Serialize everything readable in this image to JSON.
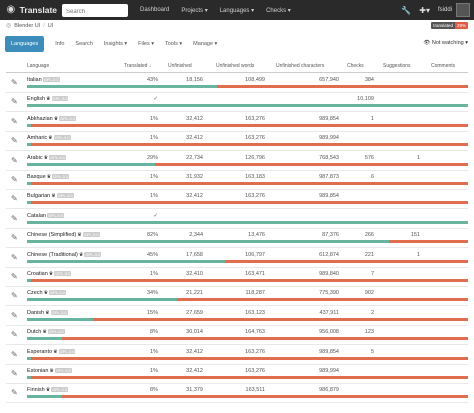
{
  "navbar": {
    "brand": "Translate",
    "search_placeholder": "Search",
    "links": [
      "Dashboard",
      "Projects ▾",
      "Languages ▾",
      "Checks ▾"
    ],
    "user": "fsiddi"
  },
  "breadcrumb": {
    "project": "Blender UI",
    "component": "UI"
  },
  "badge": {
    "label": "translated",
    "value": "29%"
  },
  "tabs": [
    "Languages",
    "Info",
    "Search",
    "Insights ▾",
    "Files ▾",
    "Tools ▾",
    "Manage ▾"
  ],
  "watch_label": "Not watching ▾",
  "columns": {
    "language": "Language",
    "translated": "Translated ↓",
    "unfinished": "Unfinished",
    "unfinished_words": "Unfinished words",
    "unfinished_chars": "Unfinished characters",
    "checks": "Checks",
    "suggestions": "Suggestions",
    "comments": "Comments"
  },
  "license_tag": "GPL-3.0",
  "rows": [
    {
      "name": "Italian",
      "crown": false,
      "lic": true,
      "translated": "43%",
      "pct": 0.43,
      "unfinished": "18,156",
      "words": "108,499",
      "chars": "657,940",
      "checks": "384",
      "suggestions": "",
      "comments": ""
    },
    {
      "name": "English",
      "crown": true,
      "lic": true,
      "translated": "✓",
      "pct": 1.0,
      "unfinished": "",
      "words": "",
      "chars": "",
      "checks": "10,109",
      "suggestions": "",
      "comments": ""
    },
    {
      "name": "Abkhazian",
      "crown": true,
      "lic": true,
      "translated": "1%",
      "pct": 0.01,
      "unfinished": "32,412",
      "words": "163,276",
      "chars": "989,854",
      "checks": "1",
      "suggestions": "",
      "comments": ""
    },
    {
      "name": "Amharic",
      "crown": true,
      "lic": true,
      "translated": "1%",
      "pct": 0.01,
      "unfinished": "32,412",
      "words": "163,276",
      "chars": "989,994",
      "checks": "",
      "suggestions": "",
      "comments": ""
    },
    {
      "name": "Arabic",
      "crown": true,
      "lic": true,
      "translated": "29%",
      "pct": 0.29,
      "unfinished": "22,734",
      "words": "126,796",
      "chars": "768,543",
      "checks": "576",
      "suggestions": "1",
      "comments": ""
    },
    {
      "name": "Basque",
      "crown": true,
      "lic": true,
      "translated": "1%",
      "pct": 0.01,
      "unfinished": "31,932",
      "words": "163,183",
      "chars": "987,873",
      "checks": "6",
      "suggestions": "",
      "comments": ""
    },
    {
      "name": "Bulgarian",
      "crown": true,
      "lic": true,
      "translated": "1%",
      "pct": 0.01,
      "unfinished": "32,412",
      "words": "163,276",
      "chars": "989,854",
      "checks": "",
      "suggestions": "",
      "comments": ""
    },
    {
      "name": "Catalan",
      "crown": false,
      "lic": true,
      "translated": "✓",
      "pct": 1.0,
      "unfinished": "",
      "words": "",
      "chars": "",
      "checks": "",
      "suggestions": "",
      "comments": ""
    },
    {
      "name": "Chinese (Simplified)",
      "crown": true,
      "lic": true,
      "translated": "82%",
      "pct": 0.82,
      "unfinished": "2,344",
      "words": "13,476",
      "chars": "87,376",
      "checks": "266",
      "suggestions": "151",
      "comments": ""
    },
    {
      "name": "Chinese (Traditional)",
      "crown": true,
      "lic": true,
      "translated": "45%",
      "pct": 0.45,
      "unfinished": "17,658",
      "words": "106,797",
      "chars": "612,874",
      "checks": "221",
      "suggestions": "1",
      "comments": ""
    },
    {
      "name": "Croatian",
      "crown": true,
      "lic": true,
      "translated": "1%",
      "pct": 0.01,
      "unfinished": "32,410",
      "words": "163,471",
      "chars": "989,840",
      "checks": "7",
      "suggestions": "",
      "comments": ""
    },
    {
      "name": "Czech",
      "crown": true,
      "lic": true,
      "translated": "34%",
      "pct": 0.34,
      "unfinished": "21,221",
      "words": "118,287",
      "chars": "775,390",
      "checks": "902",
      "suggestions": "",
      "comments": ""
    },
    {
      "name": "Danish",
      "crown": true,
      "lic": true,
      "translated": "15%",
      "pct": 0.15,
      "unfinished": "27,659",
      "words": "163,123",
      "chars": "437,911",
      "checks": "2",
      "suggestions": "",
      "comments": ""
    },
    {
      "name": "Dutch",
      "crown": true,
      "lic": true,
      "translated": "8%",
      "pct": 0.08,
      "unfinished": "30,014",
      "words": "164,763",
      "chars": "956,008",
      "checks": "123",
      "suggestions": "",
      "comments": ""
    },
    {
      "name": "Esperanto",
      "crown": true,
      "lic": true,
      "translated": "1%",
      "pct": 0.01,
      "unfinished": "32,412",
      "words": "163,276",
      "chars": "989,854",
      "checks": "5",
      "suggestions": "",
      "comments": ""
    },
    {
      "name": "Estonian",
      "crown": true,
      "lic": true,
      "translated": "1%",
      "pct": 0.01,
      "unfinished": "32,412",
      "words": "163,276",
      "chars": "989,994",
      "checks": "",
      "suggestions": "",
      "comments": ""
    },
    {
      "name": "Finnish",
      "crown": true,
      "lic": true,
      "translated": "8%",
      "pct": 0.08,
      "unfinished": "31,379",
      "words": "163,511",
      "chars": "986,879",
      "checks": "",
      "suggestions": "",
      "comments": ""
    }
  ],
  "colors": {
    "navbar": "#2a2a2a",
    "accent": "#3c8dbc",
    "progress_ok": "#67b5a0",
    "progress_bad": "#e06e4e"
  }
}
